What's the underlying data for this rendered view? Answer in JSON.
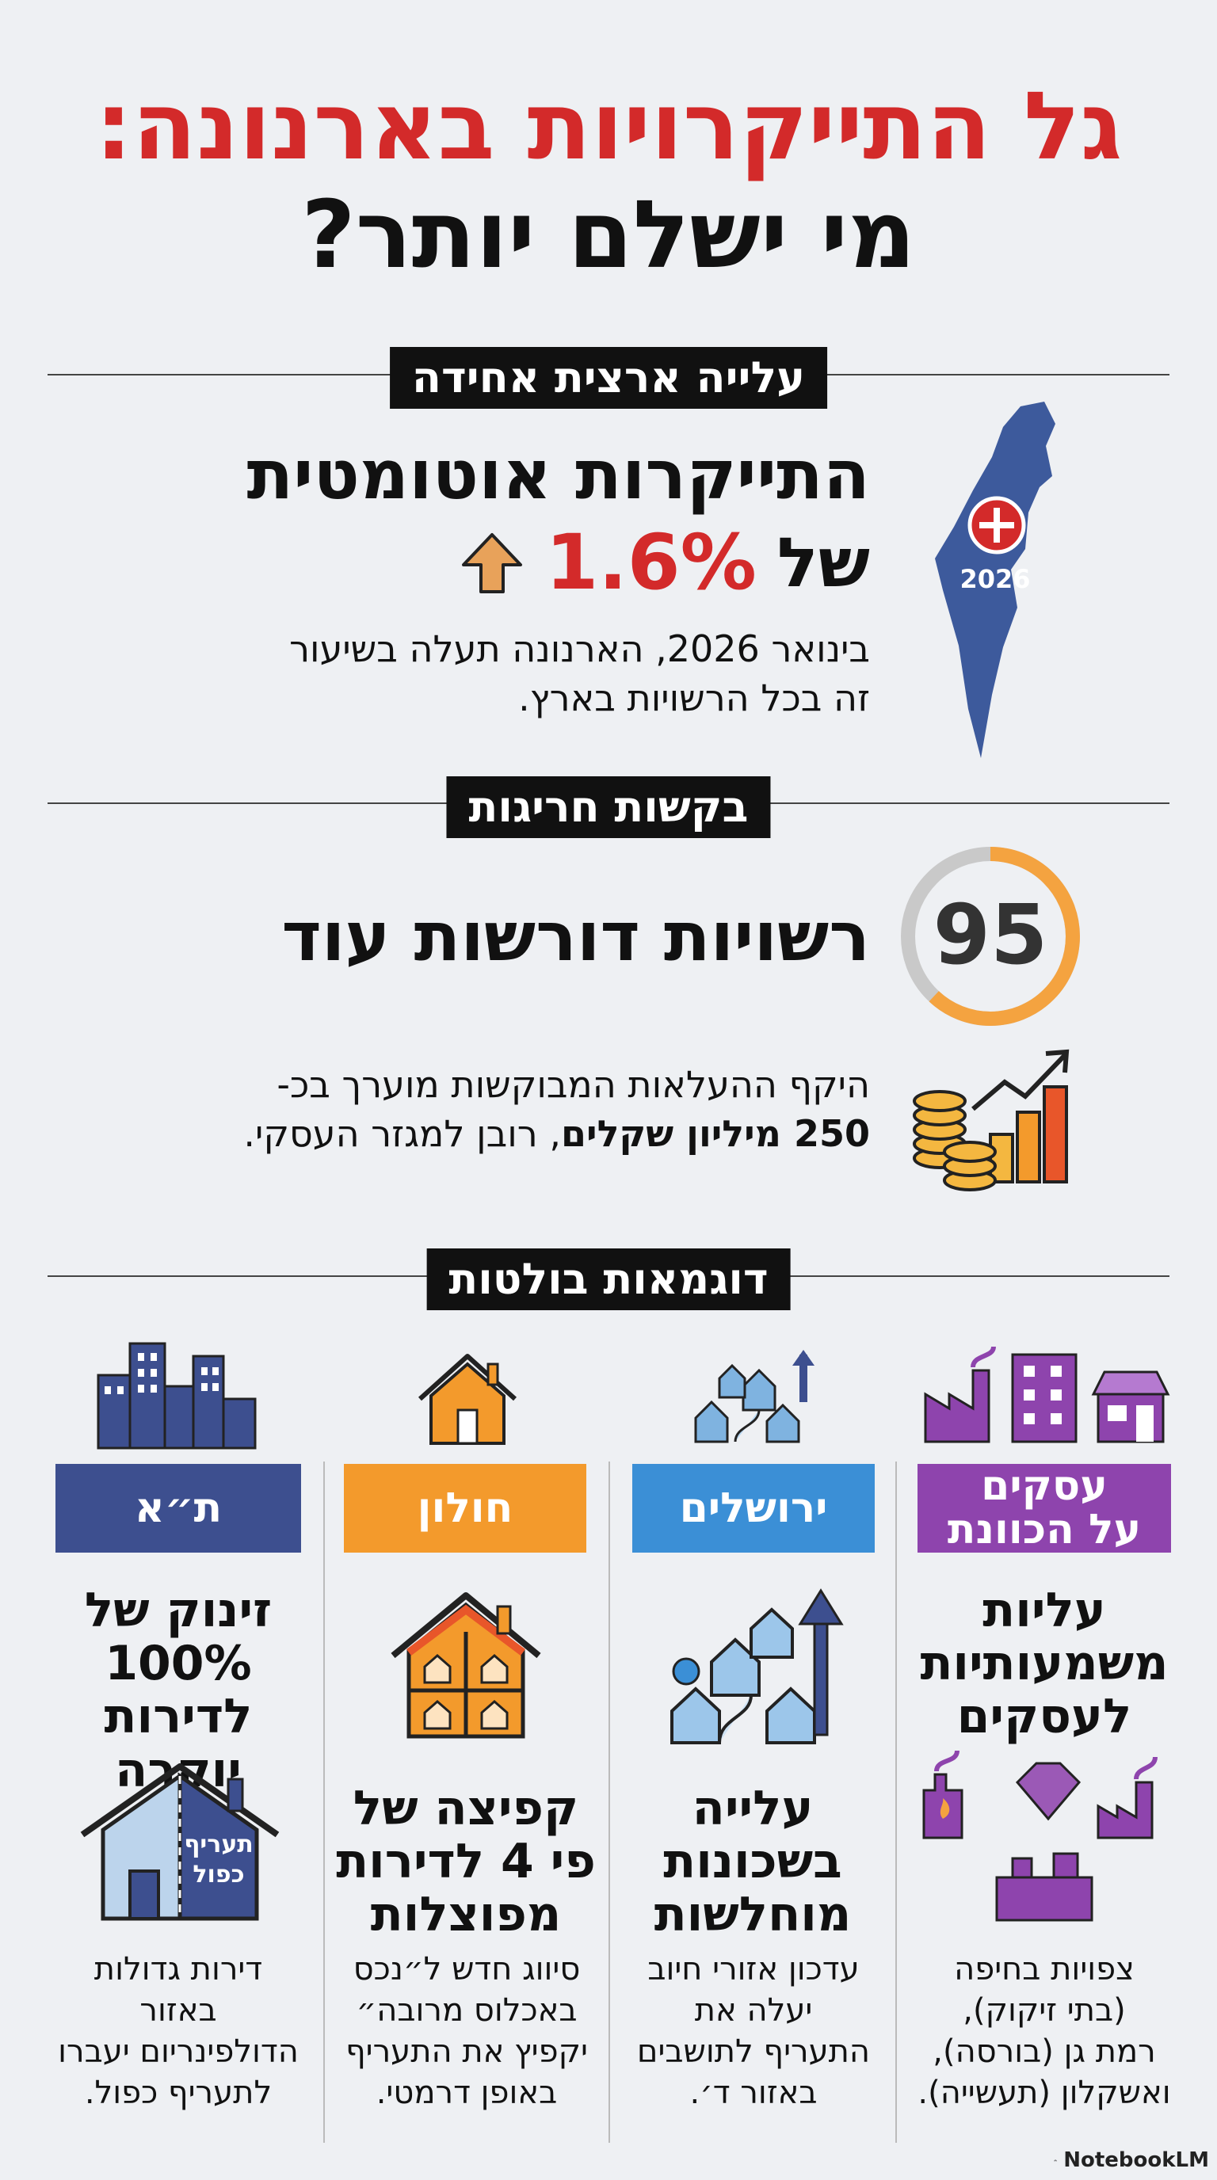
{
  "title": {
    "line1": "גל התייקרויות בארנונה:",
    "line2": "מי ישלם יותר?"
  },
  "section1": {
    "label": "עלייה ארצית אחידה",
    "headline_1": "התייקרות אוטומטית",
    "headline_2_prefix": "של",
    "percent": "1.6%",
    "body_1": "בינואר 2026, הארנונה תעלה בשיעור",
    "body_2": "זה בכל הרשויות בארץ.",
    "map_year": "2026",
    "colors": {
      "map": "#3d5a9c",
      "badge": "#d32a2a",
      "accent_red": "#d32a2a",
      "arrow": "#e8a25a"
    }
  },
  "section2": {
    "label": "בקשות חריגות",
    "count": "95",
    "headline": "רשויות דורשות עוד",
    "body_1": "היקף ההעלאות המבוקשות מוערך בכ-",
    "body_2_bold": "250 מיליון שקלים",
    "body_2_rest": ", רובן למגזר העסקי.",
    "gauge_fraction": 0.62,
    "colors": {
      "gauge_fill": "#f4a340",
      "gauge_track": "#c9c9c9"
    }
  },
  "section3": {
    "label": "דוגמאות בולטות",
    "columns": [
      {
        "name": "עסקים",
        "name_2": "על הכוונת",
        "color": "#8e44ad",
        "headline": [
          "עליות",
          "משמעותיות",
          "לעסקים"
        ],
        "desc": [
          "צפויות בחיפה",
          "(בתי זיקוק),",
          "רמת גן (בורסה),",
          "ואשקלון (תעשייה)."
        ]
      },
      {
        "name": "ירושלים",
        "color": "#3b8fd6",
        "headline": [
          "עלייה",
          "בשכונות",
          "מוחלשות"
        ],
        "desc": [
          "עדכון אזורי חיוב",
          "יעלה את",
          "התעריף לתושבים",
          "באזור ד׳."
        ]
      },
      {
        "name": "חולון",
        "color": "#f39a2c",
        "headline": [
          "קפיצה של",
          "פי 4 לדירות",
          "מפוצלות"
        ],
        "desc": [
          "סיווג חדש ל״נכס",
          "באכלוס מרובה״",
          "יקפיץ את התעריף",
          "באופן דרמטי."
        ]
      },
      {
        "name": "ת״א",
        "color": "#3d4f8f",
        "headline": [
          "זינוק של",
          "100%",
          "לדירות יוקרה"
        ],
        "house_label_1": "תעריף",
        "house_label_2": "כפול",
        "desc": [
          "דירות גדולות",
          "באזור",
          "הדולפינריום יעברו",
          "לתעריף כפול."
        ]
      }
    ]
  },
  "footer": {
    "brand": "NotebookLM"
  }
}
